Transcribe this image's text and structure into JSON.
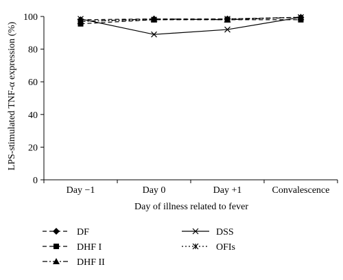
{
  "chart_data": {
    "type": "line",
    "title": "",
    "xlabel": "Day of illness related to fever",
    "ylabel": "LPS-stimulated TNF-α expression (%)",
    "categories": [
      "Day −1",
      "Day 0",
      "Day +1",
      "Convalescence"
    ],
    "ylim": [
      0,
      100
    ],
    "yticks": [
      "0",
      "20",
      "40",
      "60",
      "80",
      "100"
    ],
    "grid": false,
    "legend_position": "bottom",
    "series": [
      {
        "name": "DF",
        "values": [
          98,
          98.5,
          98.5,
          99.5
        ],
        "marker": "diamond",
        "dash": "dashed",
        "color": "#000000"
      },
      {
        "name": "DHF I",
        "values": [
          95.5,
          98,
          98,
          98
        ],
        "marker": "square",
        "dash": "dashed",
        "color": "#000000"
      },
      {
        "name": "DHF II",
        "values": [
          97,
          98.5,
          98,
          99.5
        ],
        "marker": "triangle",
        "dash": "dashdot",
        "color": "#000000"
      },
      {
        "name": "DSS",
        "values": [
          98.5,
          89,
          92,
          99.5
        ],
        "marker": "x",
        "dash": "solid",
        "color": "#000000"
      },
      {
        "name": "OFIs",
        "values": [
          97,
          98,
          98.5,
          99.5
        ],
        "marker": "asterisk",
        "dash": "dotted",
        "color": "#000000"
      }
    ]
  }
}
